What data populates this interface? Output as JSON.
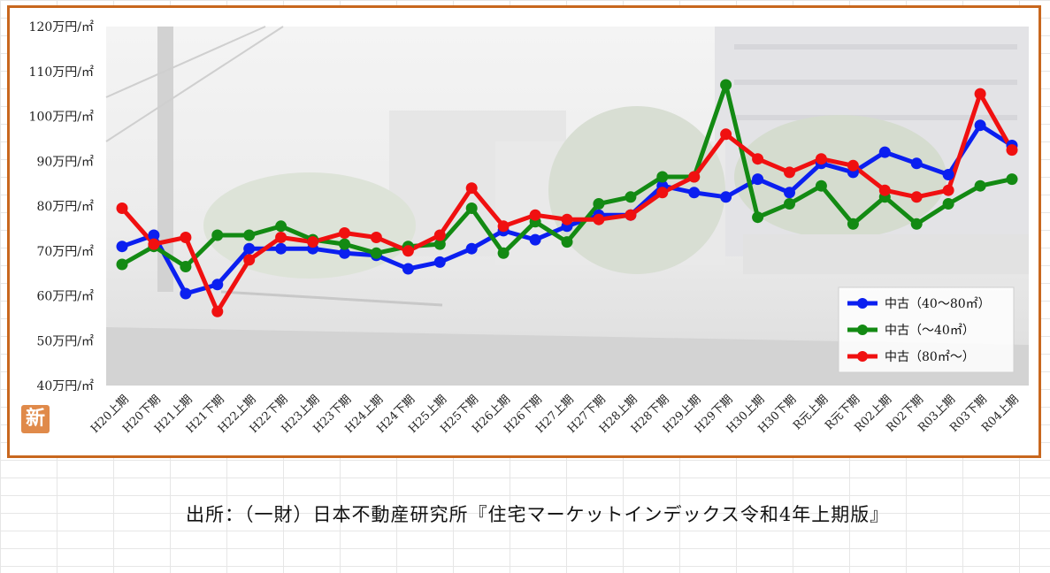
{
  "badge_text": "新",
  "source_text": "出所：（一財）日本不動産研究所『住宅マーケットインデックス令和4年上期版』",
  "chart_data": {
    "type": "line",
    "title": "",
    "xlabel": "",
    "ylabel": "",
    "ylim": [
      40,
      120
    ],
    "yticks": [
      40,
      50,
      60,
      70,
      80,
      90,
      100,
      110,
      120
    ],
    "ytick_labels": [
      "40万円/㎡",
      "50万円/㎡",
      "60万円/㎡",
      "70万円/㎡",
      "80万円/㎡",
      "90万円/㎡",
      "100万円/㎡",
      "110万円/㎡",
      "120万円/㎡"
    ],
    "legend_position": "bottom-right",
    "categories": [
      "H20上期",
      "H20下期",
      "H21上期",
      "H21下期",
      "H22上期",
      "H22下期",
      "H23上期",
      "H23下期",
      "H24上期",
      "H24下期",
      "H25上期",
      "H25下期",
      "H26上期",
      "H26下期",
      "H27上期",
      "H27下期",
      "H28上期",
      "H28下期",
      "H29上期",
      "H29下期",
      "H30上期",
      "H30下期",
      "R元上期",
      "R元下期",
      "R02上期",
      "R02下期",
      "R03上期",
      "R03下期",
      "R04上期"
    ],
    "series": [
      {
        "name": "中古（40～80㎡）",
        "color": "#0b1ff0",
        "values": [
          71,
          73.5,
          60.5,
          62.5,
          70.5,
          70.5,
          70.5,
          69.5,
          69,
          66,
          67.5,
          70.5,
          74.5,
          72.5,
          75.5,
          78,
          78,
          84.5,
          83,
          82,
          86,
          83,
          89.5,
          87.5,
          92,
          89.5,
          87,
          98,
          93.5
        ]
      },
      {
        "name": "中古（～40㎡）",
        "color": "#138a13",
        "values": [
          67,
          71,
          66.5,
          73.5,
          73.5,
          75.5,
          72.5,
          71.5,
          69.5,
          71,
          71.5,
          79.5,
          69.5,
          76.5,
          72,
          80.5,
          82,
          86.5,
          86.5,
          107,
          77.5,
          80.5,
          84.5,
          76,
          82,
          76,
          80.5,
          84.5,
          86
        ]
      },
      {
        "name": "中古（80㎡～）",
        "color": "#f01010",
        "values": [
          79.5,
          71.5,
          73,
          56.5,
          68,
          73,
          72,
          74,
          73,
          70,
          73.5,
          84,
          75.5,
          78,
          77,
          77,
          78,
          83,
          86.5,
          96,
          90.5,
          87.5,
          90.5,
          89,
          83.5,
          82,
          83.5,
          105,
          92.5
        ]
      }
    ]
  }
}
